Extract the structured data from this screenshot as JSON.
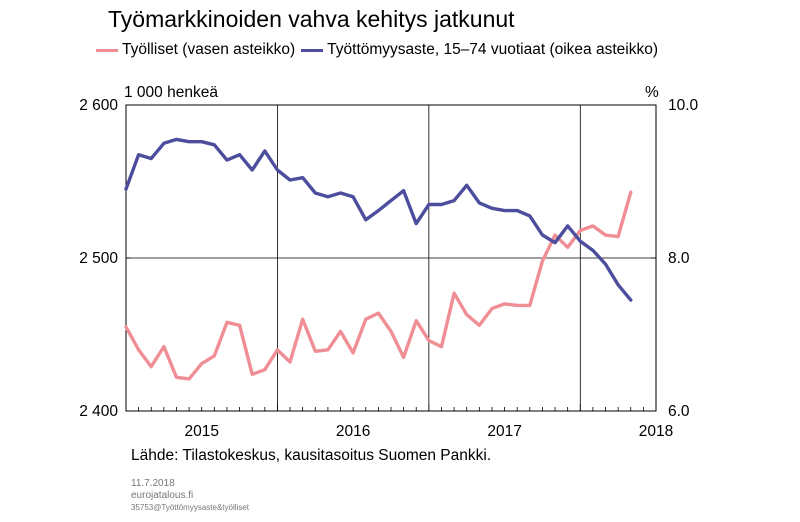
{
  "chart_data": {
    "type": "line",
    "title": "Työmarkkinoiden vahva kehitys jatkunut",
    "left_unit": "1 000 henkeä",
    "right_unit": "%",
    "source": "Lähde: Tilastokeskus, kausitasoitus Suomen Pankki.",
    "date": "11.7.2018",
    "site": "eurojatalous.fi",
    "code": "35753@Työttömyysaste&työlliset",
    "x_start_year": 2015,
    "x_end_year": 2018.5,
    "year_labels": [
      "2015",
      "2016",
      "2017",
      "2018"
    ],
    "left_axis": {
      "ylim": [
        2400,
        2600
      ],
      "ticks": [
        2400,
        2500,
        2600
      ],
      "tick_labels": [
        "2 400",
        "2 500",
        "2 600"
      ]
    },
    "right_axis": {
      "ylim": [
        6.0,
        10.0
      ],
      "ticks": [
        6.0,
        8.0,
        10.0
      ],
      "tick_labels": [
        "6.0",
        "8.0",
        "10.0"
      ]
    },
    "grid": true,
    "series": [
      {
        "name": "Työlliset (vasen asteikko)",
        "axis": "left",
        "color": "#f08e95",
        "values": [
          2455,
          2440,
          2429,
          2442,
          2422,
          2421,
          2431,
          2436,
          2458,
          2456,
          2424,
          2427,
          2440,
          2432,
          2460,
          2439,
          2440,
          2452,
          2438,
          2460,
          2464,
          2452,
          2435,
          2459,
          2446,
          2442,
          2477,
          2463,
          2456,
          2467,
          2470,
          2469,
          2469,
          2498,
          2515,
          2507,
          2518,
          2521,
          2515,
          2514,
          2543
        ]
      },
      {
        "name": "Työttömyysaste, 15–74 vuotiaat (oikea asteikko)",
        "axis": "right",
        "color": "#4d4d9e",
        "values": [
          8.9,
          9.35,
          9.3,
          9.5,
          9.55,
          9.52,
          9.52,
          9.48,
          9.28,
          9.35,
          9.15,
          9.4,
          9.15,
          9.02,
          9.05,
          8.85,
          8.8,
          8.85,
          8.8,
          8.5,
          8.62,
          8.75,
          8.88,
          8.45,
          8.7,
          8.7,
          8.75,
          8.95,
          8.72,
          8.65,
          8.62,
          8.62,
          8.55,
          8.3,
          8.2,
          8.42,
          8.22,
          8.1,
          7.92,
          7.65,
          7.45
        ]
      }
    ]
  }
}
